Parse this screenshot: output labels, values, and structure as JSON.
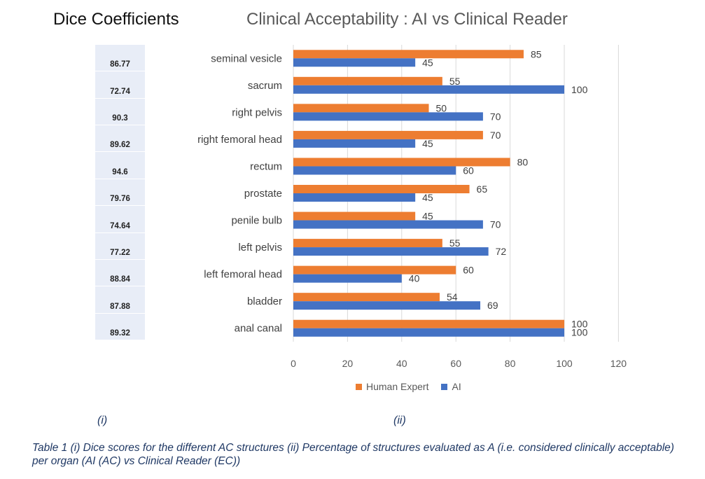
{
  "dice": {
    "title": "Dice Coefficients",
    "values": [
      "86.77",
      "72.74",
      "90.3",
      "89.62",
      "94.6",
      "79.76",
      "74.64",
      "77.22",
      "88.84",
      "87.88",
      "89.32"
    ]
  },
  "chart_data": {
    "type": "bar",
    "orientation": "horizontal",
    "title": "Clinical Acceptability : AI vs Clinical Reader",
    "categories": [
      "seminal vesicle",
      "sacrum",
      "right pelvis",
      "right femoral head",
      "rectum",
      "prostate",
      "penile bulb",
      "left pelvis",
      "left femoral head",
      "bladder",
      "anal canal"
    ],
    "series": [
      {
        "name": "Human Expert",
        "color": "#ed7d31",
        "values": [
          85,
          55,
          50,
          70,
          80,
          65,
          45,
          55,
          60,
          54,
          100
        ]
      },
      {
        "name": "AI",
        "color": "#4472c4",
        "values": [
          45,
          100,
          70,
          45,
          60,
          45,
          70,
          72,
          40,
          69,
          100
        ]
      }
    ],
    "xlim": [
      0,
      120
    ],
    "xticks": [
      "0",
      "20",
      "40",
      "60",
      "80",
      "100",
      "120"
    ],
    "grid": true,
    "legend_position": "bottom"
  },
  "labels": {
    "sub_i": "(i)",
    "sub_ii": "(ii)"
  },
  "caption": "Table 1 (i) Dice scores for the different AC structures (ii) Percentage of structures evaluated as A (i.e. considered clinically acceptable) per organ (AI (AC) vs Clinical Reader (EC))"
}
